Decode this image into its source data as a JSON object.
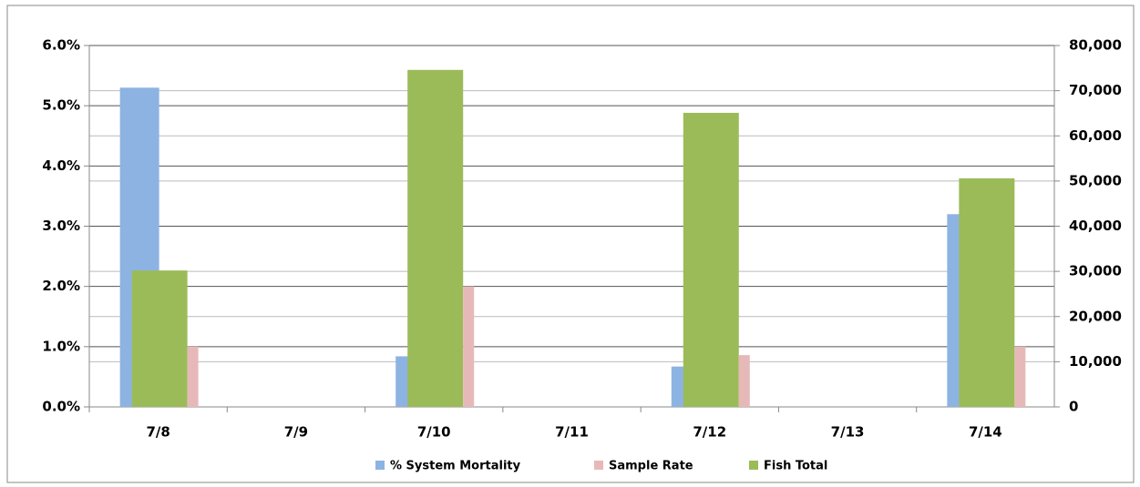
{
  "chart_data": {
    "type": "bar",
    "categories": [
      "7/8",
      "7/9",
      "7/10",
      "7/11",
      "7/12",
      "7/13",
      "7/14"
    ],
    "series": [
      {
        "name": "% System Mortality",
        "color": "#8db3e2",
        "values": [
          5.3,
          null,
          0.84,
          null,
          0.67,
          null,
          3.2
        ]
      },
      {
        "name": "Sample Rate",
        "color": "#e6b9b8",
        "values": [
          1.0,
          null,
          2.0,
          null,
          0.86,
          null,
          1.0
        ]
      },
      {
        "name": "Fish Total",
        "color": "#9bbb59",
        "axis": "y2",
        "values": [
          30200,
          null,
          74600,
          null,
          65100,
          null,
          50600
        ]
      }
    ],
    "ylim": [
      0,
      6
    ],
    "yticks": [
      {
        "value": 0,
        "label": "0.0%"
      },
      {
        "value": 1,
        "label": "1.0%"
      },
      {
        "value": 2,
        "label": "2.0%"
      },
      {
        "value": 3,
        "label": "3.0%"
      },
      {
        "value": 4,
        "label": "4.0%"
      },
      {
        "value": 5,
        "label": "5.0%"
      },
      {
        "value": 6,
        "label": "6.0%"
      }
    ],
    "y2lim": [
      0,
      80000
    ],
    "y2ticks": [
      0,
      {
        "value": 10000,
        "label": "10,000"
      },
      {
        "value": 20000,
        "label": "20,000"
      },
      {
        "value": 30000,
        "label": "30,000"
      },
      {
        "value": 40000,
        "label": "40,000"
      },
      {
        "value": 50000,
        "label": "50,000"
      },
      {
        "value": 60000,
        "label": "60,000"
      },
      {
        "value": 70000,
        "label": "70,000"
      },
      {
        "value": 80000,
        "label": "80,000"
      }
    ],
    "grid": true,
    "legend": "bottom"
  }
}
